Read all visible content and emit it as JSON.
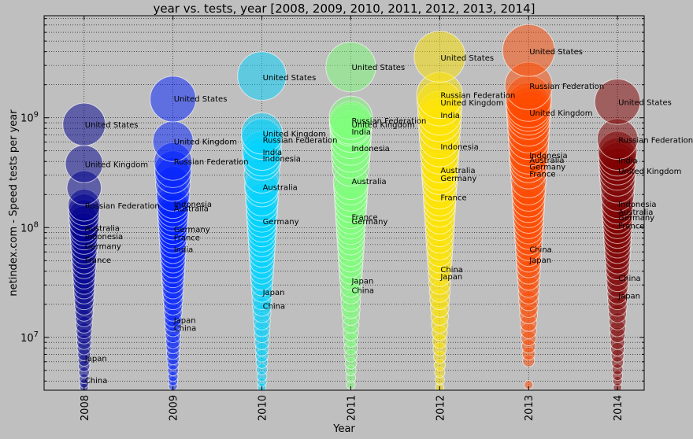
{
  "chart_data": {
    "type": "scatter",
    "title": "year vs. tests, year [2008, 2009, 2010, 2011, 2012, 2013, 2014]",
    "xlabel": "Year",
    "ylabel": "netindex.com - Speed tests per year",
    "yscale": "log",
    "ylim": [
      3300000,
      8500000000
    ],
    "xlim": [
      2007.55,
      2014.3
    ],
    "grid": true,
    "x_ticks": [
      "2008",
      "2009",
      "2010",
      "2011",
      "2012",
      "2013",
      "2014"
    ],
    "y_ticks": [
      {
        "value": 10000000,
        "label": "10^7"
      },
      {
        "value": 100000000,
        "label": "10^8"
      },
      {
        "value": 1000000000,
        "label": "10^9"
      }
    ],
    "series": [
      {
        "x": 2008,
        "color": "#00008f",
        "values": [
          870000000,
          380000000,
          230000000,
          160000000,
          145000000,
          130000000,
          115000000,
          100000000,
          92000000,
          84000000,
          76000000,
          68000000,
          61000000,
          55000000,
          49000000,
          44000000,
          39000000,
          35000000,
          31000000,
          28000000,
          25000000,
          22000000,
          19500000,
          17000000,
          15000000,
          13000000,
          11500000,
          10200000,
          9000000,
          8000000,
          7000000,
          6200000,
          5500000,
          4800000,
          4200000,
          3800000,
          3500000
        ]
      },
      {
        "x": 2009,
        "color": "#0020ff",
        "values": [
          1480000000,
          610000000,
          400000000,
          340000000,
          300000000,
          250000000,
          200000000,
          170000000,
          155000000,
          140000000,
          128000000,
          115000000,
          105000000,
          95000000,
          86000000,
          78000000,
          70000000,
          62000000,
          56000000,
          50000000,
          45000000,
          40000000,
          36000000,
          32000000,
          28000000,
          25000000,
          22000000,
          19500000,
          17000000,
          15000000,
          13500000,
          12000000,
          10500000,
          9200000,
          8200000,
          7200000,
          6400000,
          5700000,
          5000000,
          4400000,
          4000000,
          3600000
        ]
      },
      {
        "x": 2010,
        "color": "#00d4ff",
        "values": [
          2400000000,
          720000000,
          640000000,
          500000000,
          440000000,
          400000000,
          300000000,
          240000000,
          220000000,
          180000000,
          160000000,
          140000000,
          125000000,
          112000000,
          100000000,
          90000000,
          80000000,
          72000000,
          64000000,
          57000000,
          50000000,
          44000000,
          39000000,
          34000000,
          30000000,
          26000000,
          22000000,
          19000000,
          16500000,
          14000000,
          12000000,
          10500000,
          9000000,
          7800000,
          6800000,
          5900000,
          5100000,
          4400000,
          3900000,
          3500000
        ]
      },
      {
        "x": 2011,
        "color": "#7dff7a",
        "values": [
          2900000000,
          1000000000,
          900000000,
          860000000,
          750000000,
          650000000,
          560000000,
          480000000,
          420000000,
          350000000,
          260000000,
          230000000,
          200000000,
          175000000,
          155000000,
          135000000,
          120000000,
          107000000,
          95000000,
          85000000,
          75000000,
          66000000,
          58000000,
          51000000,
          45000000,
          39000000,
          34000000,
          29000000,
          25000000,
          21000000,
          18000000,
          15500000,
          13000000,
          11000000,
          9500000,
          8000000,
          6800000,
          5800000,
          5000000,
          4300000,
          3700000
        ]
      },
      {
        "x": 2012,
        "color": "#ffe600",
        "values": [
          3600000000,
          1600000000,
          1350000000,
          1100000000,
          950000000,
          800000000,
          650000000,
          540000000,
          460000000,
          380000000,
          320000000,
          290000000,
          250000000,
          210000000,
          180000000,
          160000000,
          140000000,
          120000000,
          104000000,
          90000000,
          78000000,
          67000000,
          58000000,
          50000000,
          43000000,
          37000000,
          31000000,
          26000000,
          22000000,
          18500000,
          15500000,
          13000000,
          11000000,
          9200000,
          7800000,
          6600000,
          5600000,
          4800000,
          4100000,
          3500000
        ]
      },
      {
        "x": 2013,
        "color": "#ff4a00",
        "values": [
          4100000000,
          1950000000,
          1500000000,
          1300000000,
          1200000000,
          1100000000,
          1000000000,
          860000000,
          740000000,
          640000000,
          550000000,
          460000000,
          420000000,
          380000000,
          330000000,
          270000000,
          230000000,
          200000000,
          175000000,
          155000000,
          138000000,
          122000000,
          108000000,
          96000000,
          85000000,
          75000000,
          66000000,
          58000000,
          51000000,
          45000000,
          39000000,
          34000000,
          29000000,
          25000000,
          21500000,
          18500000,
          16000000,
          13500000,
          11500000,
          9800000,
          8300000,
          7100000,
          6100000,
          3700000
        ]
      },
      {
        "x": 2014,
        "color": "#7f0000",
        "values": [
          1400000000,
          640000000,
          500000000,
          440000000,
          400000000,
          360000000,
          320000000,
          280000000,
          240000000,
          200000000,
          170000000,
          150000000,
          133000000,
          120000000,
          108000000,
          97000000,
          87000000,
          78000000,
          70000000,
          62000000,
          55000000,
          49000000,
          43000000,
          38000000,
          33000000,
          29000000,
          25000000,
          22000000,
          19000000,
          16500000,
          14000000,
          12000000,
          10500000,
          9000000,
          7800000,
          6800000,
          5900000,
          5100000,
          4500000,
          4000000,
          3500000
        ]
      }
    ],
    "annotations": [
      {
        "x": 2008,
        "y": 870000000,
        "text": "United States"
      },
      {
        "x": 2008,
        "y": 380000000,
        "text": "United Kingdom"
      },
      {
        "x": 2008,
        "y": 160000000,
        "text": "Russian Federation"
      },
      {
        "x": 2008,
        "y": 100000000,
        "text": "Australia"
      },
      {
        "x": 2008,
        "y": 84000000,
        "text": "Indonesia"
      },
      {
        "x": 2008,
        "y": 68000000,
        "text": "Germany"
      },
      {
        "x": 2008,
        "y": 51000000,
        "text": "France"
      },
      {
        "x": 2008,
        "y": 6500000,
        "text": "Japan"
      },
      {
        "x": 2008,
        "y": 4100000,
        "text": "China"
      },
      {
        "x": 2009,
        "y": 1500000000,
        "text": "United States"
      },
      {
        "x": 2009,
        "y": 610000000,
        "text": "United Kingdom"
      },
      {
        "x": 2009,
        "y": 400000000,
        "text": "Russian Federation"
      },
      {
        "x": 2009,
        "y": 165000000,
        "text": "Indonesia"
      },
      {
        "x": 2009,
        "y": 150000000,
        "text": "Australia"
      },
      {
        "x": 2009,
        "y": 97000000,
        "text": "Germany"
      },
      {
        "x": 2009,
        "y": 82000000,
        "text": "France"
      },
      {
        "x": 2009,
        "y": 64000000,
        "text": "India"
      },
      {
        "x": 2009,
        "y": 14500000,
        "text": "Japan"
      },
      {
        "x": 2009,
        "y": 12300000,
        "text": "China"
      },
      {
        "x": 2010,
        "y": 2350000000,
        "text": "United States"
      },
      {
        "x": 2010,
        "y": 720000000,
        "text": "United Kingdom"
      },
      {
        "x": 2010,
        "y": 630000000,
        "text": "Russian Federation"
      },
      {
        "x": 2010,
        "y": 490000000,
        "text": "India"
      },
      {
        "x": 2010,
        "y": 430000000,
        "text": "Indonesia"
      },
      {
        "x": 2010,
        "y": 235000000,
        "text": "Australia"
      },
      {
        "x": 2010,
        "y": 115000000,
        "text": "Germany"
      },
      {
        "x": 2010,
        "y": 26000000,
        "text": "Japan"
      },
      {
        "x": 2010,
        "y": 19500000,
        "text": "China"
      },
      {
        "x": 2011,
        "y": 2900000000,
        "text": "United States"
      },
      {
        "x": 2011,
        "y": 950000000,
        "text": "Russian Federation"
      },
      {
        "x": 2011,
        "y": 870000000,
        "text": "United Kingdom"
      },
      {
        "x": 2011,
        "y": 750000000,
        "text": "India"
      },
      {
        "x": 2011,
        "y": 530000000,
        "text": "Indonesia"
      },
      {
        "x": 2011,
        "y": 265000000,
        "text": "Australia"
      },
      {
        "x": 2011,
        "y": 125000000,
        "text": "France"
      },
      {
        "x": 2011,
        "y": 115000000,
        "text": "Germany"
      },
      {
        "x": 2011,
        "y": 33000000,
        "text": "Japan"
      },
      {
        "x": 2011,
        "y": 27000000,
        "text": "China"
      },
      {
        "x": 2012,
        "y": 3550000000,
        "text": "United States"
      },
      {
        "x": 2012,
        "y": 1620000000,
        "text": "Russian Federation"
      },
      {
        "x": 2012,
        "y": 1380000000,
        "text": "United Kingdom"
      },
      {
        "x": 2012,
        "y": 1060000000,
        "text": "India"
      },
      {
        "x": 2012,
        "y": 550000000,
        "text": "Indonesia"
      },
      {
        "x": 2012,
        "y": 335000000,
        "text": "Australia"
      },
      {
        "x": 2012,
        "y": 285000000,
        "text": "Germany"
      },
      {
        "x": 2012,
        "y": 190000000,
        "text": "France"
      },
      {
        "x": 2012,
        "y": 42000000,
        "text": "China"
      },
      {
        "x": 2012,
        "y": 36000000,
        "text": "Japan"
      },
      {
        "x": 2013,
        "y": 4050000000,
        "text": "United States"
      },
      {
        "x": 2013,
        "y": 1950000000,
        "text": "Russian Federation"
      },
      {
        "x": 2013,
        "y": 1120000000,
        "text": "United Kingdom"
      },
      {
        "x": 2013,
        "y": 460000000,
        "text": "Indonesia"
      },
      {
        "x": 2013,
        "y": 415000000,
        "text": "Australia"
      },
      {
        "x": 2013,
        "y": 360000000,
        "text": "Germany"
      },
      {
        "x": 2013,
        "y": 310000000,
        "text": "France"
      },
      {
        "x": 2013,
        "y": 64000000,
        "text": "China"
      },
      {
        "x": 2013,
        "y": 51000000,
        "text": "Japan"
      },
      {
        "x": 2014,
        "y": 1400000000,
        "text": "United States"
      },
      {
        "x": 2014,
        "y": 630000000,
        "text": "Russian Federation"
      },
      {
        "x": 2014,
        "y": 410000000,
        "text": "India"
      },
      {
        "x": 2014,
        "y": 330000000,
        "text": "United Kingdom"
      },
      {
        "x": 2014,
        "y": 165000000,
        "text": "Indonesia"
      },
      {
        "x": 2014,
        "y": 140000000,
        "text": "Australia"
      },
      {
        "x": 2014,
        "y": 124000000,
        "text": "Germany"
      },
      {
        "x": 2014,
        "y": 105000000,
        "text": "France"
      },
      {
        "x": 2014,
        "y": 35000000,
        "text": "China"
      },
      {
        "x": 2014,
        "y": 24000000,
        "text": "Japan"
      }
    ]
  }
}
